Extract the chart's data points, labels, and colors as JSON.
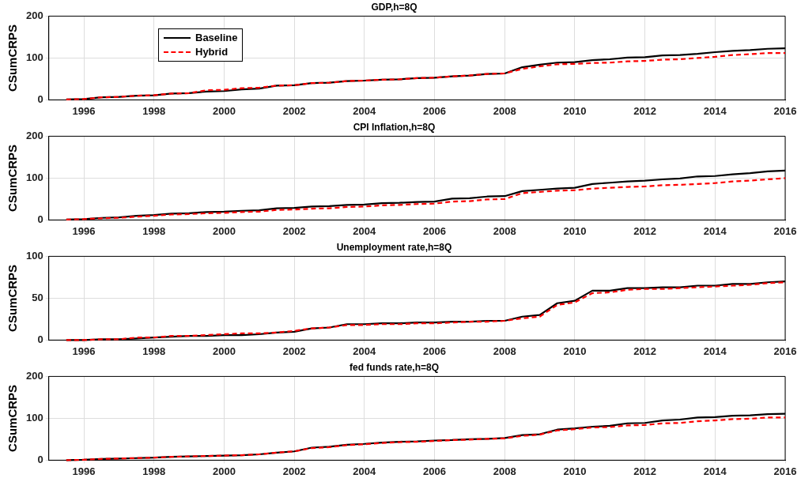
{
  "chart_data": [
    {
      "type": "line",
      "title": "GDP,h=8Q",
      "ylabel": "CSumCRPS",
      "x": [
        1995.5,
        1996,
        1996.5,
        1997,
        1997.5,
        1998,
        1998.5,
        1999,
        1999.5,
        2000,
        2000.5,
        2001,
        2001.5,
        2002,
        2002.5,
        2003,
        2003.5,
        2004,
        2004.5,
        2005,
        2005.5,
        2006,
        2006.5,
        2007,
        2007.5,
        2008,
        2008.5,
        2009,
        2009.5,
        2010,
        2010.5,
        2011,
        2011.5,
        2012,
        2012.5,
        2013,
        2013.5,
        2014,
        2014.5,
        2015,
        2015.5,
        2016
      ],
      "xlim": [
        1995,
        2016
      ],
      "xticks": [
        1996,
        1998,
        2000,
        2002,
        2004,
        2006,
        2008,
        2010,
        2012,
        2014,
        2016
      ],
      "ylim": [
        0,
        200
      ],
      "yticks": [
        0,
        100,
        200
      ],
      "grid": true,
      "legend": "top left",
      "series": [
        {
          "name": "Baseline",
          "color": "#000000",
          "line_style": "solid",
          "values": [
            1,
            2,
            6,
            7,
            10,
            11,
            15,
            16,
            20,
            21,
            25,
            27,
            34,
            35,
            40,
            41,
            45,
            46,
            48,
            49,
            52,
            53,
            56,
            58,
            62,
            63,
            78,
            84,
            89,
            90,
            95,
            97,
            101,
            102,
            106,
            107,
            110,
            114,
            117,
            119,
            122,
            123
          ]
        },
        {
          "name": "Hybrid",
          "color": "#ff0000",
          "line_style": "dashed",
          "values": [
            1,
            2,
            6,
            7,
            10,
            11,
            15,
            16,
            23,
            24,
            28,
            29,
            34,
            35,
            40,
            41,
            45,
            46,
            48,
            49,
            52,
            53,
            56,
            58,
            62,
            63,
            74,
            80,
            85,
            86,
            88,
            89,
            92,
            93,
            96,
            97,
            100,
            103,
            107,
            109,
            112,
            112
          ]
        }
      ]
    },
    {
      "type": "line",
      "title": "CPI Inflation,h=8Q",
      "ylabel": "CSumCRPS",
      "x": [
        1995.5,
        1996,
        1996.5,
        1997,
        1997.5,
        1998,
        1998.5,
        1999,
        1999.5,
        2000,
        2000.5,
        2001,
        2001.5,
        2002,
        2002.5,
        2003,
        2003.5,
        2004,
        2004.5,
        2005,
        2005.5,
        2006,
        2006.5,
        2007,
        2007.5,
        2008,
        2008.5,
        2009,
        2009.5,
        2010,
        2010.5,
        2011,
        2011.5,
        2012,
        2012.5,
        2013,
        2013.5,
        2014,
        2014.5,
        2015,
        2015.5,
        2016
      ],
      "xlim": [
        1995,
        2016
      ],
      "xticks": [
        1996,
        1998,
        2000,
        2002,
        2004,
        2006,
        2008,
        2010,
        2012,
        2014,
        2016
      ],
      "ylim": [
        0,
        200
      ],
      "yticks": [
        0,
        100,
        200
      ],
      "grid": true,
      "series": [
        {
          "color": "#000000",
          "line_style": "solid",
          "values": [
            1,
            2,
            5,
            6,
            10,
            12,
            15,
            16,
            19,
            20,
            22,
            23,
            28,
            29,
            32,
            33,
            36,
            37,
            40,
            41,
            43,
            44,
            51,
            52,
            56,
            57,
            69,
            72,
            75,
            77,
            86,
            89,
            92,
            94,
            97,
            99,
            104,
            105,
            109,
            112,
            116,
            118
          ]
        },
        {
          "color": "#ff0000",
          "line_style": "dashed",
          "values": [
            1,
            2,
            4,
            5,
            8,
            10,
            13,
            14,
            16,
            17,
            19,
            20,
            24,
            25,
            27,
            28,
            31,
            32,
            35,
            36,
            38,
            39,
            44,
            45,
            49,
            50,
            64,
            67,
            70,
            71,
            75,
            77,
            79,
            80,
            83,
            84,
            86,
            88,
            92,
            94,
            97,
            100
          ]
        }
      ]
    },
    {
      "type": "line",
      "title": "Unemployment rate,h=8Q",
      "ylabel": "CSumCRPS",
      "x": [
        1995.5,
        1996,
        1996.5,
        1997,
        1997.5,
        1998,
        1998.5,
        1999,
        1999.5,
        2000,
        2000.5,
        2001,
        2001.5,
        2002,
        2002.5,
        2003,
        2003.5,
        2004,
        2004.5,
        2005,
        2005.5,
        2006,
        2006.5,
        2007,
        2007.5,
        2008,
        2008.5,
        2009,
        2009.5,
        2010,
        2010.5,
        2011,
        2011.5,
        2012,
        2012.5,
        2013,
        2013.5,
        2014,
        2014.5,
        2015,
        2015.5,
        2016
      ],
      "xlim": [
        1995,
        2016
      ],
      "xticks": [
        1996,
        1998,
        2000,
        2002,
        2004,
        2006,
        2008,
        2010,
        2012,
        2014,
        2016
      ],
      "ylim": [
        0,
        100
      ],
      "yticks": [
        0,
        50,
        100
      ],
      "grid": true,
      "series": [
        {
          "color": "#000000",
          "line_style": "solid",
          "values": [
            0,
            0,
            1,
            1,
            2,
            3,
            4,
            5,
            5,
            6,
            6,
            7,
            9,
            10,
            14,
            15,
            19,
            19,
            20,
            20,
            21,
            21,
            22,
            22,
            23,
            23,
            28,
            30,
            44,
            47,
            59,
            59,
            62,
            62,
            63,
            63,
            65,
            65,
            67,
            67,
            69,
            70
          ]
        },
        {
          "color": "#ff0000",
          "line_style": "dashed",
          "values": [
            0,
            0,
            1,
            1,
            3,
            3,
            5,
            5,
            6,
            7,
            8,
            8,
            9,
            11,
            14,
            15,
            18,
            18,
            19,
            19,
            20,
            20,
            21,
            22,
            22,
            23,
            26,
            28,
            42,
            45,
            56,
            57,
            60,
            61,
            61,
            62,
            63,
            64,
            65,
            66,
            68,
            69
          ]
        }
      ]
    },
    {
      "type": "line",
      "title": "fed funds rate,h=8Q",
      "ylabel": "CSumCRPS",
      "x": [
        1995.5,
        1996,
        1996.5,
        1997,
        1997.5,
        1998,
        1998.5,
        1999,
        1999.5,
        2000,
        2000.5,
        2001,
        2001.5,
        2002,
        2002.5,
        2003,
        2003.5,
        2004,
        2004.5,
        2005,
        2005.5,
        2006,
        2006.5,
        2007,
        2007.5,
        2008,
        2008.5,
        2009,
        2009.5,
        2010,
        2010.5,
        2011,
        2011.5,
        2012,
        2012.5,
        2013,
        2013.5,
        2014,
        2014.5,
        2015,
        2015.5,
        2016
      ],
      "xlim": [
        1995,
        2016
      ],
      "xticks": [
        1996,
        1998,
        2000,
        2002,
        2004,
        2006,
        2008,
        2010,
        2012,
        2014,
        2016
      ],
      "ylim": [
        0,
        200
      ],
      "yticks": [
        0,
        100,
        200
      ],
      "grid": true,
      "series": [
        {
          "color": "#000000",
          "line_style": "solid",
          "values": [
            0,
            1,
            3,
            4,
            5,
            6,
            8,
            9,
            10,
            11,
            12,
            14,
            18,
            21,
            30,
            32,
            37,
            39,
            42,
            44,
            45,
            47,
            48,
            50,
            51,
            53,
            60,
            62,
            73,
            76,
            80,
            82,
            88,
            89,
            95,
            97,
            102,
            103,
            106,
            107,
            110,
            111
          ]
        },
        {
          "color": "#ff0000",
          "line_style": "dashed",
          "values": [
            0,
            1,
            3,
            4,
            5,
            6,
            8,
            9,
            10,
            11,
            12,
            14,
            18,
            21,
            29,
            31,
            36,
            38,
            41,
            43,
            44,
            46,
            48,
            49,
            51,
            52,
            58,
            61,
            71,
            74,
            78,
            79,
            83,
            84,
            88,
            89,
            93,
            95,
            98,
            99,
            102,
            102
          ]
        }
      ]
    }
  ]
}
